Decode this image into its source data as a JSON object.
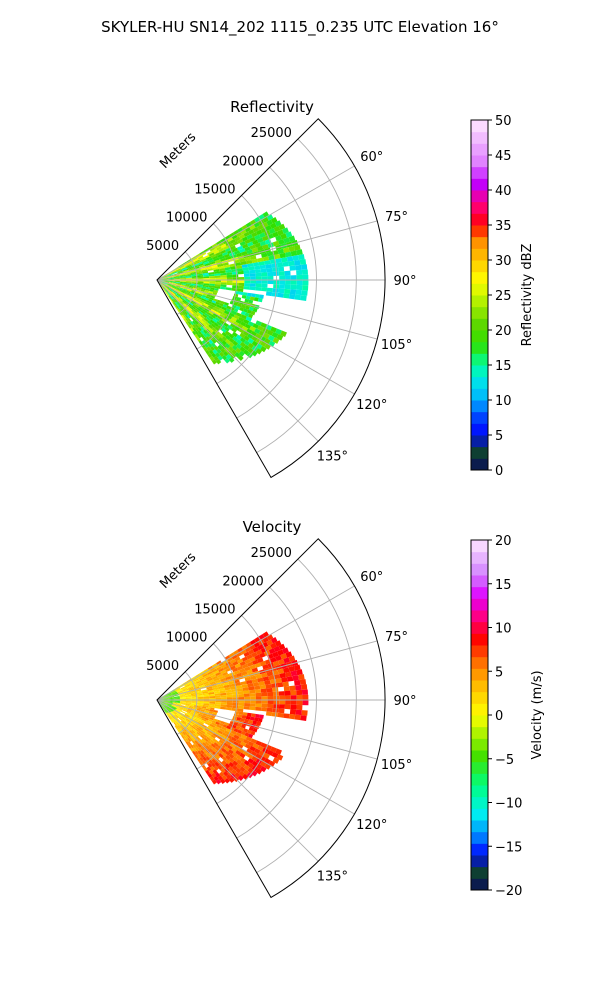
{
  "figure_title": "SKYLER-HU  SN14_202  1115_0.235 UTC Elevation 16°",
  "chart_data": [
    {
      "type": "polar-sector",
      "title": "Reflectivity",
      "range_label": "Meters",
      "theta_min_deg": 45,
      "theta_max_deg": 150,
      "theta_ticks": [
        60,
        75,
        90,
        105,
        120,
        135
      ],
      "theta_tick_labels": [
        "60°",
        "75°",
        "90°",
        "105°",
        "120°",
        "135°"
      ],
      "r_max": 28600,
      "r_ticks": [
        5000,
        10000,
        15000,
        20000,
        25000
      ],
      "r_tick_labels": [
        "5000",
        "10000",
        "15000",
        "20000",
        "25000"
      ],
      "grid": true,
      "colorbar": {
        "label": "Reflectivity dBZ",
        "min": 0,
        "max": 50,
        "ticks": [
          0,
          5,
          10,
          15,
          20,
          25,
          30,
          35,
          40,
          45,
          50
        ],
        "tick_labels": [
          "0",
          "5",
          "10",
          "15",
          "20",
          "25",
          "30",
          "35",
          "40",
          "45",
          "50"
        ]
      },
      "echo_extent": {
        "theta_start_deg": 58,
        "theta_end_deg": 146,
        "r_max_approx": 19000
      }
    },
    {
      "type": "polar-sector",
      "title": "Velocity",
      "range_label": "Meters",
      "theta_min_deg": 45,
      "theta_max_deg": 150,
      "theta_ticks": [
        60,
        75,
        90,
        105,
        120,
        135
      ],
      "theta_tick_labels": [
        "60°",
        "75°",
        "90°",
        "105°",
        "120°",
        "135°"
      ],
      "r_max": 28600,
      "r_ticks": [
        5000,
        10000,
        15000,
        20000,
        25000
      ],
      "r_tick_labels": [
        "5000",
        "10000",
        "15000",
        "20000",
        "25000"
      ],
      "grid": true,
      "colorbar": {
        "label": "Velocity (m/s)",
        "min": -20,
        "max": 20,
        "ticks": [
          -20,
          -15,
          -10,
          -5,
          0,
          5,
          10,
          15,
          20
        ],
        "tick_labels": [
          "−20",
          "−15",
          "−10",
          "−5",
          "0",
          "5",
          "10",
          "15",
          "20"
        ]
      },
      "echo_extent": {
        "theta_start_deg": 58,
        "theta_end_deg": 146,
        "r_max_approx": 19000
      }
    }
  ]
}
